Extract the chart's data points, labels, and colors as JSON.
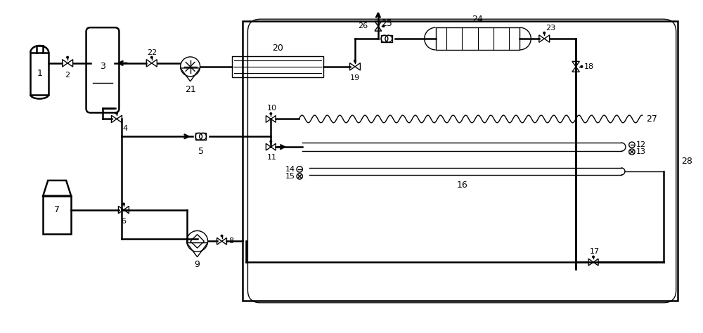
{
  "bg_color": "#ffffff",
  "line_color": "#000000",
  "lw": 1.8,
  "lw_thin": 1.0,
  "fig_width": 10.0,
  "fig_height": 4.74,
  "dpi": 100,
  "xlim": [
    0,
    100
  ],
  "ylim": [
    0,
    47.4
  ]
}
